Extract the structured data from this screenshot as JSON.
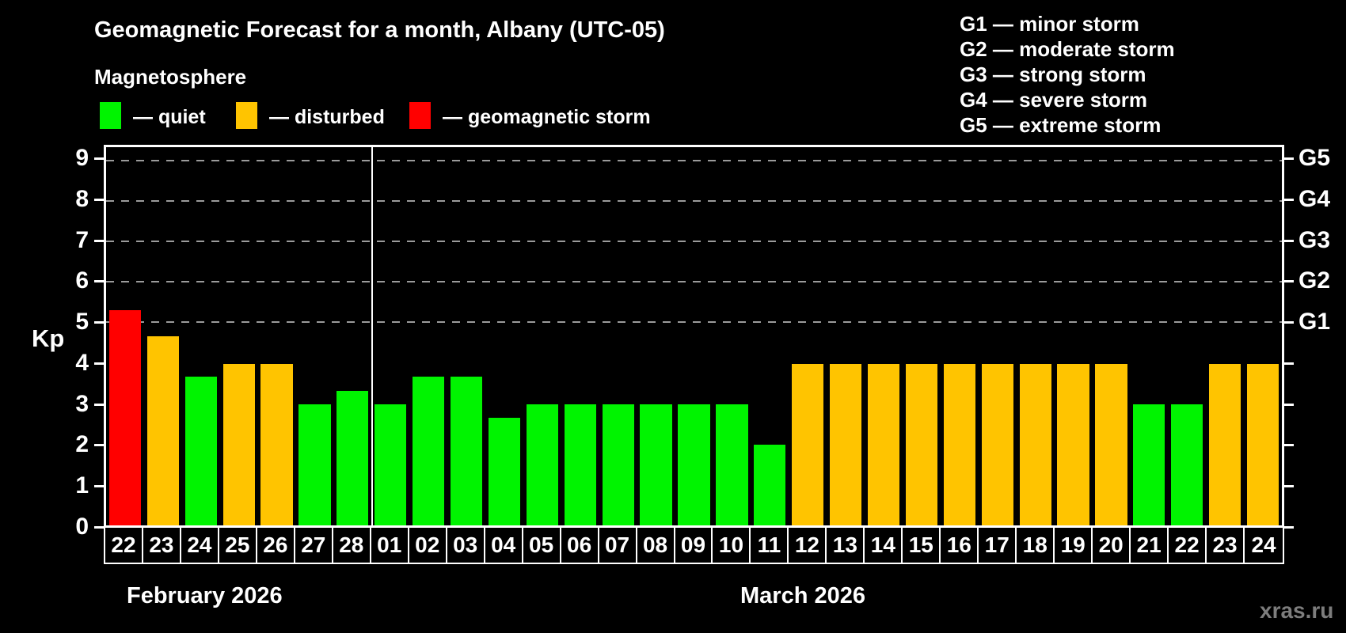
{
  "title": "Geomagnetic Forecast for a month, Albany (UTC-05)",
  "subtitle": "Magnetosphere",
  "legend": {
    "quiet": {
      "label": "— quiet",
      "color": "#00f400"
    },
    "disturbed": {
      "label": "— disturbed",
      "color": "#ffc400"
    },
    "storm": {
      "label": "— geomagnetic storm",
      "color": "#ff0000"
    }
  },
  "g_legend": [
    {
      "label": "G1 — minor storm"
    },
    {
      "label": "G2 — moderate storm"
    },
    {
      "label": "G3 — strong storm"
    },
    {
      "label": "G4 — severe storm"
    },
    {
      "label": "G5 — extreme storm"
    }
  ],
  "axes": {
    "y_label": "Kp",
    "y_ticks": [
      0,
      1,
      2,
      3,
      4,
      5,
      6,
      7,
      8,
      9
    ],
    "kp_max": 9.35,
    "grid_kp": [
      5,
      6,
      7,
      8,
      9
    ],
    "g_labels": [
      {
        "label": "G5",
        "kp": 9
      },
      {
        "label": "G4",
        "kp": 8
      },
      {
        "label": "G3",
        "kp": 7
      },
      {
        "label": "G2",
        "kp": 6
      },
      {
        "label": "G1",
        "kp": 5
      }
    ]
  },
  "months": [
    {
      "name": "February 2026",
      "days": 7
    },
    {
      "name": "March 2026",
      "days": 24
    }
  ],
  "watermark": "xras.ru",
  "chart_data": {
    "type": "bar",
    "title": "Geomagnetic Forecast for a month, Albany (UTC-05)",
    "xlabel": "day",
    "ylabel": "Kp",
    "ylim": [
      0,
      9.35
    ],
    "grid": "dashed horizontal at Kp 5-9 (G1-G5)",
    "legend_position": "top-left",
    "categories": [
      "22",
      "23",
      "24",
      "25",
      "26",
      "27",
      "28",
      "01",
      "02",
      "03",
      "04",
      "05",
      "06",
      "07",
      "08",
      "09",
      "10",
      "11",
      "12",
      "13",
      "14",
      "15",
      "16",
      "17",
      "18",
      "19",
      "20",
      "21",
      "22",
      "23",
      "24"
    ],
    "values": [
      5.33,
      4.67,
      3.67,
      4,
      4,
      3,
      3.33,
      3,
      3.67,
      3.67,
      2.67,
      3,
      3,
      3,
      3,
      3,
      3,
      2,
      4,
      4,
      4,
      4,
      4,
      4,
      4,
      4,
      4,
      3,
      3,
      4,
      4
    ],
    "days": [
      {
        "day": "22",
        "month": "February 2026",
        "kp": 5.33,
        "status": "storm"
      },
      {
        "day": "23",
        "month": "February 2026",
        "kp": 4.67,
        "status": "disturbed"
      },
      {
        "day": "24",
        "month": "February 2026",
        "kp": 3.67,
        "status": "quiet"
      },
      {
        "day": "25",
        "month": "February 2026",
        "kp": 4,
        "status": "disturbed"
      },
      {
        "day": "26",
        "month": "February 2026",
        "kp": 4,
        "status": "disturbed"
      },
      {
        "day": "27",
        "month": "February 2026",
        "kp": 3,
        "status": "quiet"
      },
      {
        "day": "28",
        "month": "February 2026",
        "kp": 3.33,
        "status": "quiet"
      },
      {
        "day": "01",
        "month": "March 2026",
        "kp": 3,
        "status": "quiet"
      },
      {
        "day": "02",
        "month": "March 2026",
        "kp": 3.67,
        "status": "quiet"
      },
      {
        "day": "03",
        "month": "March 2026",
        "kp": 3.67,
        "status": "quiet"
      },
      {
        "day": "04",
        "month": "March 2026",
        "kp": 2.67,
        "status": "quiet"
      },
      {
        "day": "05",
        "month": "March 2026",
        "kp": 3,
        "status": "quiet"
      },
      {
        "day": "06",
        "month": "March 2026",
        "kp": 3,
        "status": "quiet"
      },
      {
        "day": "07",
        "month": "March 2026",
        "kp": 3,
        "status": "quiet"
      },
      {
        "day": "08",
        "month": "March 2026",
        "kp": 3,
        "status": "quiet"
      },
      {
        "day": "09",
        "month": "March 2026",
        "kp": 3,
        "status": "quiet"
      },
      {
        "day": "10",
        "month": "March 2026",
        "kp": 3,
        "status": "quiet"
      },
      {
        "day": "11",
        "month": "March 2026",
        "kp": 2,
        "status": "quiet"
      },
      {
        "day": "12",
        "month": "March 2026",
        "kp": 4,
        "status": "disturbed"
      },
      {
        "day": "13",
        "month": "March 2026",
        "kp": 4,
        "status": "disturbed"
      },
      {
        "day": "14",
        "month": "March 2026",
        "kp": 4,
        "status": "disturbed"
      },
      {
        "day": "15",
        "month": "March 2026",
        "kp": 4,
        "status": "disturbed"
      },
      {
        "day": "16",
        "month": "March 2026",
        "kp": 4,
        "status": "disturbed"
      },
      {
        "day": "17",
        "month": "March 2026",
        "kp": 4,
        "status": "disturbed"
      },
      {
        "day": "18",
        "month": "March 2026",
        "kp": 4,
        "status": "disturbed"
      },
      {
        "day": "19",
        "month": "March 2026",
        "kp": 4,
        "status": "disturbed"
      },
      {
        "day": "20",
        "month": "March 2026",
        "kp": 4,
        "status": "disturbed"
      },
      {
        "day": "21",
        "month": "March 2026",
        "kp": 3,
        "status": "quiet"
      },
      {
        "day": "22",
        "month": "March 2026",
        "kp": 3,
        "status": "quiet"
      },
      {
        "day": "23",
        "month": "March 2026",
        "kp": 4,
        "status": "disturbed"
      },
      {
        "day": "24",
        "month": "March 2026",
        "kp": 4,
        "status": "disturbed"
      }
    ]
  }
}
